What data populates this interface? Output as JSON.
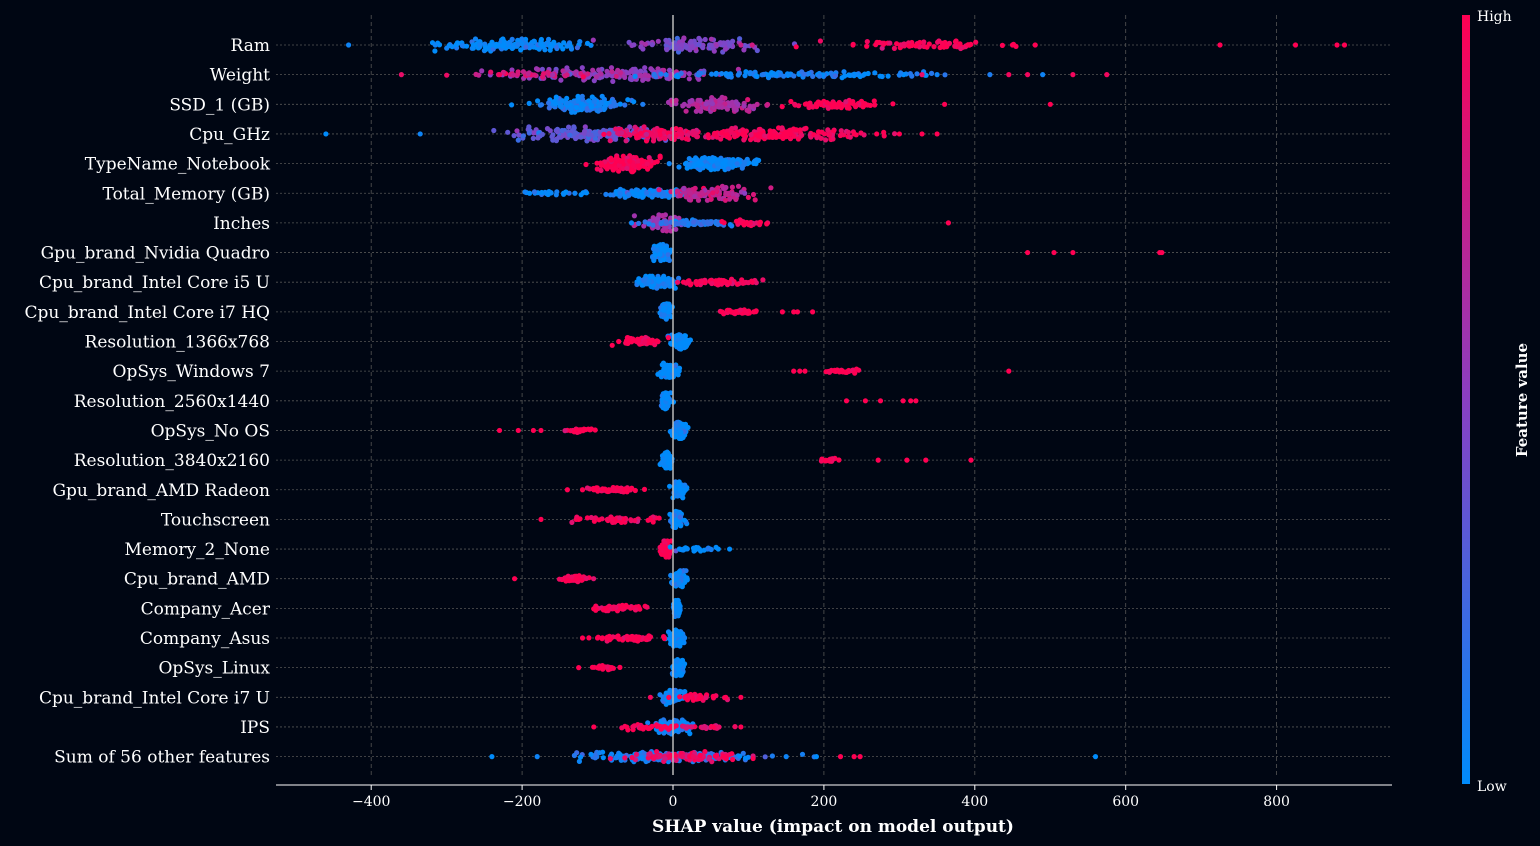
{
  "chart_data": {
    "type": "scatter",
    "subtype": "shap-beeswarm",
    "xlabel": "SHAP value (impact on model output)",
    "xlim": [
      -530,
      955
    ],
    "xticks": [
      -400,
      -200,
      0,
      200,
      400,
      600,
      800
    ],
    "grid": true,
    "colorbar": {
      "title": "Feature value",
      "high_label": "High",
      "low_label": "Low",
      "high_color": "#ff0052",
      "low_color": "#008bfb"
    },
    "colors": {
      "background": "#000613",
      "text": "#ffffff",
      "zero_line": "#bbbbbb",
      "grid": "#555555"
    },
    "features": [
      {
        "name": "Ram",
        "clusters": [
          {
            "c": -210,
            "s": 50,
            "n": 150,
            "h": 6,
            "v": 0.0
          },
          {
            "c": 30,
            "s": 40,
            "n": 110,
            "h": 7,
            "v": 0.45
          },
          {
            "c": 320,
            "s": 55,
            "n": 70,
            "h": 4,
            "v": 1.0
          }
        ],
        "points": [
          [
            -315,
            0.05
          ],
          [
            -430,
            0.05
          ],
          [
            90,
            0.75
          ],
          [
            105,
            0.8
          ],
          [
            450,
            1.0
          ],
          [
            480,
            1.0
          ],
          [
            725,
            1.0
          ],
          [
            825,
            1.0
          ],
          [
            880,
            1.0
          ],
          [
            890,
            1.0
          ]
        ]
      },
      {
        "name": "Weight",
        "clusters": [
          {
            "c": -80,
            "s": 70,
            "n": 170,
            "h": 7,
            "v": 0.55
          },
          {
            "c": 150,
            "s": 90,
            "n": 130,
            "h": 3,
            "v": 0.05
          },
          {
            "c": -180,
            "s": 40,
            "n": 40,
            "h": 3,
            "v": 0.8
          }
        ],
        "points": [
          [
            -360,
            0.9
          ],
          [
            -230,
            0.95
          ],
          [
            420,
            0.1
          ],
          [
            445,
            0.95
          ],
          [
            470,
            0.95
          ],
          [
            490,
            0.05
          ],
          [
            530,
            0.95
          ],
          [
            575,
            0.95
          ],
          [
            350,
            0.05
          ],
          [
            330,
            0.9
          ]
        ]
      },
      {
        "name": "SSD_1 (GB)",
        "clusters": [
          {
            "c": -120,
            "s": 25,
            "n": 160,
            "h": 8,
            "v": 0.05
          },
          {
            "c": 60,
            "s": 25,
            "n": 110,
            "h": 7,
            "v": 0.65
          },
          {
            "c": 220,
            "s": 25,
            "n": 80,
            "h": 4,
            "v": 1.0
          }
        ],
        "points": [
          [
            -40,
            0.1
          ],
          [
            15,
            0.6
          ],
          [
            360,
            1.0
          ],
          [
            500,
            1.0
          ],
          [
            255,
            1.0
          ]
        ]
      },
      {
        "name": "Cpu_GHz",
        "clusters": [
          {
            "c": -110,
            "s": 50,
            "n": 160,
            "h": 7,
            "v": 0.35
          },
          {
            "c": -20,
            "s": 30,
            "n": 130,
            "h": 7,
            "v": 0.9
          },
          {
            "c": 130,
            "s": 60,
            "n": 180,
            "h": 6,
            "v": 0.97
          }
        ],
        "points": [
          [
            -460,
            0.0
          ],
          [
            -335,
            0.05
          ],
          [
            270,
            1.0
          ],
          [
            300,
            1.0
          ],
          [
            330,
            1.0
          ],
          [
            350,
            1.0
          ],
          [
            240,
            1.0
          ]
        ]
      },
      {
        "name": "TypeName_Notebook",
        "clusters": [
          {
            "c": -60,
            "s": 18,
            "n": 150,
            "h": 8,
            "v": 1.0
          },
          {
            "c": 60,
            "s": 22,
            "n": 180,
            "h": 6,
            "v": 0.0
          }
        ],
        "points": [
          [
            -95,
            1.0
          ],
          [
            -5,
            0.05
          ],
          [
            110,
            0.0
          ]
        ]
      },
      {
        "name": "Total_Memory (GB)",
        "clusters": [
          {
            "c": -30,
            "s": 30,
            "n": 120,
            "h": 4,
            "v": 0.05
          },
          {
            "c": 50,
            "s": 25,
            "n": 110,
            "h": 7,
            "v": 0.75
          },
          {
            "c": -160,
            "s": 20,
            "n": 25,
            "h": 2,
            "v": 0.0
          }
        ],
        "points": [
          [
            -190,
            0.0
          ],
          [
            -130,
            0.05
          ],
          [
            95,
            0.5
          ],
          [
            -70,
            0.1
          ]
        ]
      },
      {
        "name": "Inches",
        "clusters": [
          {
            "c": -15,
            "s": 15,
            "n": 80,
            "h": 8,
            "v": 0.6
          },
          {
            "c": 30,
            "s": 25,
            "n": 90,
            "h": 3,
            "v": 0.15
          },
          {
            "c": 95,
            "s": 15,
            "n": 30,
            "h": 3,
            "v": 1.0
          }
        ],
        "points": [
          [
            -55,
            0.05
          ],
          [
            115,
            1.0
          ],
          [
            365,
            1.0
          ]
        ]
      },
      {
        "name": "Gpu_brand_Nvidia Quadro",
        "clusters": [
          {
            "c": -15,
            "s": 5,
            "n": 130,
            "h": 8,
            "v": 0.0
          }
        ],
        "points": [
          [
            470,
            1.0
          ],
          [
            505,
            1.0
          ],
          [
            530,
            1.0
          ],
          [
            645,
            1.0
          ],
          [
            648,
            1.0
          ]
        ]
      },
      {
        "name": "Cpu_brand_Intel Core i5 U",
        "clusters": [
          {
            "c": -20,
            "s": 12,
            "n": 120,
            "h": 6,
            "v": 0.0
          },
          {
            "c": 60,
            "s": 25,
            "n": 90,
            "h": 3,
            "v": 1.0
          }
        ],
        "points": [
          [
            -45,
            0.0
          ],
          [
            20,
            0.95
          ],
          [
            105,
            1.0
          ]
        ]
      },
      {
        "name": "Cpu_brand_Intel Core i7 HQ",
        "clusters": [
          {
            "c": -10,
            "s": 3,
            "n": 110,
            "h": 8,
            "v": 0.0
          },
          {
            "c": 85,
            "s": 12,
            "n": 50,
            "h": 2,
            "v": 1.0
          }
        ],
        "points": [
          [
            145,
            1.0
          ],
          [
            160,
            1.0
          ],
          [
            165,
            1.0
          ],
          [
            185,
            1.0
          ],
          [
            65,
            1.0
          ]
        ]
      },
      {
        "name": "Resolution_1366x768",
        "clusters": [
          {
            "c": 10,
            "s": 5,
            "n": 110,
            "h": 8,
            "v": 0.0
          },
          {
            "c": -40,
            "s": 12,
            "n": 70,
            "h": 4,
            "v": 1.0
          }
        ],
        "points": [
          [
            -72,
            1.0
          ],
          [
            20,
            0.0
          ]
        ]
      },
      {
        "name": "OpSys_Windows 7",
        "clusters": [
          {
            "c": -5,
            "s": 5,
            "n": 110,
            "h": 8,
            "v": 0.0
          },
          {
            "c": 225,
            "s": 10,
            "n": 25,
            "h": 2,
            "v": 1.0
          }
        ],
        "points": [
          [
            160,
            1.0
          ],
          [
            168,
            1.0
          ],
          [
            175,
            1.0
          ],
          [
            445,
            1.0
          ]
        ]
      },
      {
        "name": "Resolution_2560x1440",
        "clusters": [
          {
            "c": -10,
            "s": 3,
            "n": 110,
            "h": 8,
            "v": 0.0
          }
        ],
        "points": [
          [
            230,
            1.0
          ],
          [
            255,
            1.0
          ],
          [
            275,
            1.0
          ],
          [
            305,
            1.0
          ],
          [
            315,
            1.0
          ],
          [
            322,
            1.0
          ]
        ]
      },
      {
        "name": "OpSys_No OS",
        "clusters": [
          {
            "c": 8,
            "s": 5,
            "n": 120,
            "h": 8,
            "v": 0.0
          },
          {
            "c": -125,
            "s": 10,
            "n": 30,
            "h": 2,
            "v": 1.0
          }
        ],
        "points": [
          [
            -230,
            1.0
          ],
          [
            -205,
            1.0
          ],
          [
            -185,
            1.0
          ],
          [
            -175,
            1.0
          ]
        ]
      },
      {
        "name": "Resolution_3840x2160",
        "clusters": [
          {
            "c": -8,
            "s": 3,
            "n": 110,
            "h": 8,
            "v": 0.0
          },
          {
            "c": 205,
            "s": 6,
            "n": 15,
            "h": 2,
            "v": 1.0
          }
        ],
        "points": [
          [
            272,
            1.0
          ],
          [
            310,
            1.0
          ],
          [
            335,
            1.0
          ],
          [
            395,
            1.0
          ]
        ]
      },
      {
        "name": "Gpu_brand_AMD Radeon",
        "clusters": [
          {
            "c": 8,
            "s": 4,
            "n": 120,
            "h": 8,
            "v": 0.0
          },
          {
            "c": -75,
            "s": 15,
            "n": 55,
            "h": 3,
            "v": 1.0
          }
        ],
        "points": [
          [
            -140,
            1.0
          ],
          [
            -120,
            1.0
          ],
          [
            -105,
            1.0
          ]
        ]
      },
      {
        "name": "Touchscreen",
        "clusters": [
          {
            "c": 5,
            "s": 4,
            "n": 120,
            "h": 8,
            "v": 0.0
          },
          {
            "c": -75,
            "s": 25,
            "n": 50,
            "h": 3,
            "v": 1.0
          }
        ],
        "points": [
          [
            -175,
            1.0
          ],
          [
            -125,
            1.0
          ],
          [
            -30,
            1.0
          ]
        ]
      },
      {
        "name": "Memory_2_None",
        "clusters": [
          {
            "c": -10,
            "s": 3,
            "n": 110,
            "h": 8,
            "v": 1.0
          },
          {
            "c": 30,
            "s": 15,
            "n": 30,
            "h": 2,
            "v": 0.0
          }
        ],
        "points": [
          [
            75,
            0.0
          ],
          [
            60,
            0.0
          ]
        ]
      },
      {
        "name": "Cpu_brand_AMD",
        "clusters": [
          {
            "c": 8,
            "s": 4,
            "n": 120,
            "h": 8,
            "v": 0.0
          },
          {
            "c": -130,
            "s": 10,
            "n": 40,
            "h": 3,
            "v": 1.0
          }
        ],
        "points": [
          [
            -210,
            1.0
          ]
        ]
      },
      {
        "name": "Company_Acer",
        "clusters": [
          {
            "c": 5,
            "s": 2,
            "n": 120,
            "h": 8,
            "v": 0.0
          },
          {
            "c": -75,
            "s": 18,
            "n": 60,
            "h": 3,
            "v": 1.0
          }
        ],
        "points": []
      },
      {
        "name": "Company_Asus",
        "clusters": [
          {
            "c": 5,
            "s": 5,
            "n": 120,
            "h": 8,
            "v": 0.0
          },
          {
            "c": -60,
            "s": 22,
            "n": 60,
            "h": 3,
            "v": 1.0
          }
        ],
        "points": [
          [
            -120,
            1.0
          ],
          [
            -100,
            1.0
          ],
          [
            15,
            0.05
          ]
        ]
      },
      {
        "name": "OpSys_Linux",
        "clusters": [
          {
            "c": 7,
            "s": 3,
            "n": 110,
            "h": 8,
            "v": 0.0
          },
          {
            "c": -90,
            "s": 10,
            "n": 20,
            "h": 2,
            "v": 1.0
          }
        ],
        "points": [
          [
            -125,
            1.0
          ],
          [
            -100,
            1.0
          ]
        ]
      },
      {
        "name": "Cpu_brand_Intel Core i7 U",
        "clusters": [
          {
            "c": 0,
            "s": 8,
            "n": 110,
            "h": 7,
            "v": 0.05
          },
          {
            "c": 35,
            "s": 15,
            "n": 40,
            "h": 3,
            "v": 1.0
          }
        ],
        "points": [
          [
            -30,
            0.95
          ],
          [
            70,
            1.0
          ],
          [
            90,
            1.0
          ]
        ]
      },
      {
        "name": "IPS",
        "clusters": [
          {
            "c": 0,
            "s": 12,
            "n": 110,
            "h": 7,
            "v": 0.05
          },
          {
            "c": -30,
            "s": 15,
            "n": 40,
            "h": 3,
            "v": 1.0
          },
          {
            "c": 40,
            "s": 15,
            "n": 25,
            "h": 2,
            "v": 0.9
          }
        ],
        "points": [
          [
            -105,
            1.0
          ],
          [
            90,
            1.0
          ]
        ]
      },
      {
        "name": "Sum of 56 other features",
        "clusters": [
          {
            "c": -10,
            "s": 55,
            "n": 220,
            "h": 5,
            "v": 0.1
          },
          {
            "c": 20,
            "s": 35,
            "n": 90,
            "h": 5,
            "v": 0.9
          }
        ],
        "points": [
          [
            -240,
            0.0
          ],
          [
            -180,
            0.05
          ],
          [
            150,
            0.05
          ],
          [
            190,
            0.0
          ],
          [
            222,
            1.0
          ],
          [
            240,
            1.0
          ],
          [
            248,
            1.0
          ],
          [
            560,
            0.0
          ]
        ]
      }
    ]
  }
}
